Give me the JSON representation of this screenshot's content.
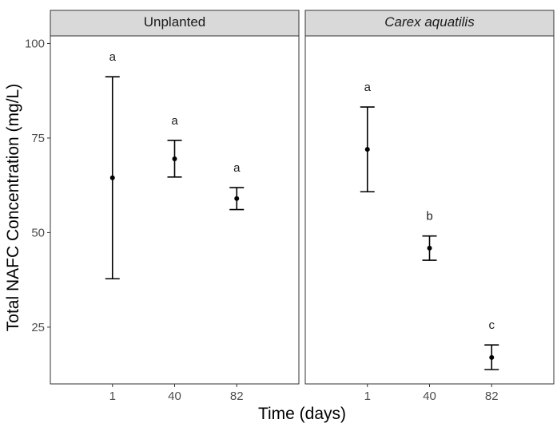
{
  "chart_data": {
    "type": "scatter",
    "xlabel": "Time (days)",
    "ylabel": "Total NAFC Concentration (mg/L)",
    "categories": [
      "1",
      "40",
      "82"
    ],
    "yticks": [
      25,
      50,
      75,
      100
    ],
    "ylim": [
      10,
      102
    ],
    "grid": false,
    "panels": [
      {
        "title": "Unplanted",
        "italic": false,
        "points": [
          {
            "x": "1",
            "mean": 64.5,
            "lower": 37.8,
            "upper": 91.2,
            "label": "a"
          },
          {
            "x": "40",
            "mean": 69.5,
            "lower": 64.7,
            "upper": 74.4,
            "label": "a"
          },
          {
            "x": "82",
            "mean": 59.0,
            "lower": 56.1,
            "upper": 61.9,
            "label": "a"
          }
        ]
      },
      {
        "title": "Carex aquatilis",
        "italic": true,
        "points": [
          {
            "x": "1",
            "mean": 72.0,
            "lower": 60.8,
            "upper": 83.2,
            "label": "a"
          },
          {
            "x": "40",
            "mean": 45.9,
            "lower": 42.7,
            "upper": 49.1,
            "label": "b"
          },
          {
            "x": "82",
            "mean": 17.0,
            "lower": 13.8,
            "upper": 20.3,
            "label": "c"
          }
        ]
      }
    ]
  }
}
